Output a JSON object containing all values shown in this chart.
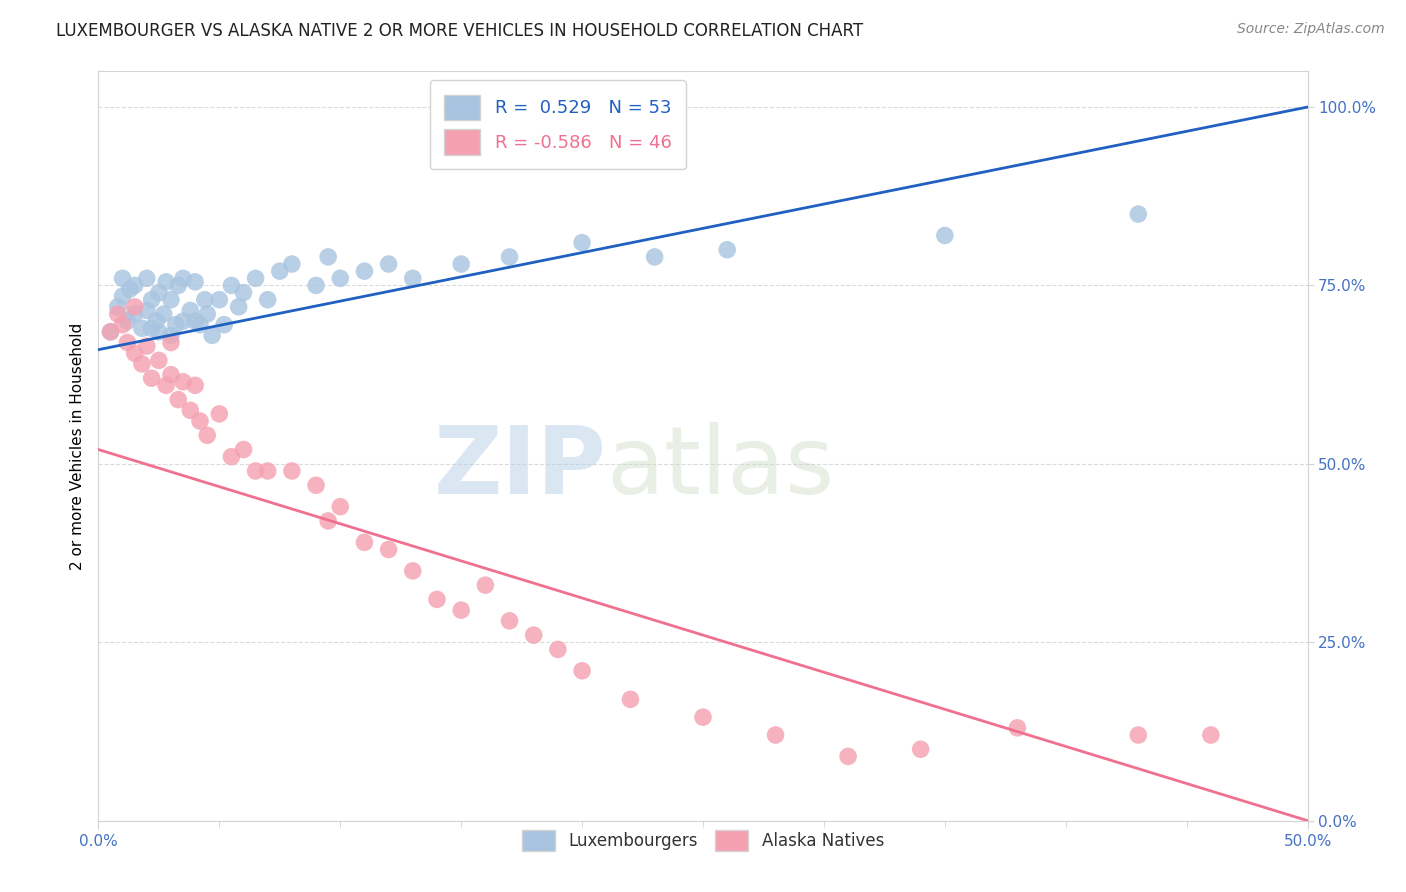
{
  "title": "LUXEMBOURGER VS ALASKA NATIVE 2 OR MORE VEHICLES IN HOUSEHOLD CORRELATION CHART",
  "source": "Source: ZipAtlas.com",
  "ylabel": "2 or more Vehicles in Household",
  "xlim": [
    0.0,
    0.5
  ],
  "ylim": [
    0.0,
    1.05
  ],
  "xtick_major": [
    0.0,
    0.5
  ],
  "xticklabels_major": [
    "0.0%",
    "50.0%"
  ],
  "xtick_minor": [
    0.05,
    0.1,
    0.15,
    0.2,
    0.25,
    0.3,
    0.35,
    0.4,
    0.45
  ],
  "yticks": [
    0.0,
    0.25,
    0.5,
    0.75,
    1.0
  ],
  "yticklabels": [
    "0.0%",
    "25.0%",
    "50.0%",
    "75.0%",
    "100.0%"
  ],
  "r_blue": 0.529,
  "n_blue": 53,
  "r_pink": -0.586,
  "n_pink": 46,
  "blue_color": "#a8c4e0",
  "pink_color": "#f4a0b0",
  "blue_line_color": "#2060c0",
  "pink_line_color": "#f07090",
  "legend_labels": [
    "Luxembourgers",
    "Alaska Natives"
  ],
  "watermark_zip": "ZIP",
  "watermark_atlas": "atlas",
  "blue_scatter_x": [
    0.005,
    0.008,
    0.01,
    0.01,
    0.012,
    0.013,
    0.015,
    0.015,
    0.018,
    0.02,
    0.02,
    0.022,
    0.022,
    0.024,
    0.025,
    0.025,
    0.027,
    0.028,
    0.03,
    0.03,
    0.032,
    0.033,
    0.035,
    0.035,
    0.038,
    0.04,
    0.04,
    0.042,
    0.044,
    0.045,
    0.047,
    0.05,
    0.052,
    0.055,
    0.058,
    0.06,
    0.065,
    0.07,
    0.075,
    0.08,
    0.09,
    0.095,
    0.1,
    0.11,
    0.12,
    0.13,
    0.15,
    0.17,
    0.2,
    0.23,
    0.26,
    0.35,
    0.43
  ],
  "blue_scatter_y": [
    0.685,
    0.72,
    0.735,
    0.76,
    0.7,
    0.745,
    0.71,
    0.75,
    0.69,
    0.715,
    0.76,
    0.69,
    0.73,
    0.7,
    0.685,
    0.74,
    0.71,
    0.755,
    0.68,
    0.73,
    0.695,
    0.75,
    0.7,
    0.76,
    0.715,
    0.7,
    0.755,
    0.695,
    0.73,
    0.71,
    0.68,
    0.73,
    0.695,
    0.75,
    0.72,
    0.74,
    0.76,
    0.73,
    0.77,
    0.78,
    0.75,
    0.79,
    0.76,
    0.77,
    0.78,
    0.76,
    0.78,
    0.79,
    0.81,
    0.79,
    0.8,
    0.82,
    0.85
  ],
  "pink_scatter_x": [
    0.005,
    0.008,
    0.01,
    0.012,
    0.015,
    0.015,
    0.018,
    0.02,
    0.022,
    0.025,
    0.028,
    0.03,
    0.03,
    0.033,
    0.035,
    0.038,
    0.04,
    0.042,
    0.045,
    0.05,
    0.055,
    0.06,
    0.065,
    0.07,
    0.08,
    0.09,
    0.095,
    0.1,
    0.11,
    0.12,
    0.13,
    0.14,
    0.15,
    0.16,
    0.17,
    0.18,
    0.19,
    0.2,
    0.22,
    0.25,
    0.28,
    0.31,
    0.34,
    0.38,
    0.43,
    0.46
  ],
  "pink_scatter_y": [
    0.685,
    0.71,
    0.695,
    0.67,
    0.655,
    0.72,
    0.64,
    0.665,
    0.62,
    0.645,
    0.61,
    0.625,
    0.67,
    0.59,
    0.615,
    0.575,
    0.61,
    0.56,
    0.54,
    0.57,
    0.51,
    0.52,
    0.49,
    0.49,
    0.49,
    0.47,
    0.42,
    0.44,
    0.39,
    0.38,
    0.35,
    0.31,
    0.295,
    0.33,
    0.28,
    0.26,
    0.24,
    0.21,
    0.17,
    0.145,
    0.12,
    0.09,
    0.1,
    0.13,
    0.12,
    0.12
  ],
  "blue_line_x": [
    0.0,
    0.5
  ],
  "blue_line_y": [
    0.66,
    1.0
  ],
  "pink_line_x": [
    0.0,
    0.5
  ],
  "pink_line_y": [
    0.52,
    0.0
  ]
}
